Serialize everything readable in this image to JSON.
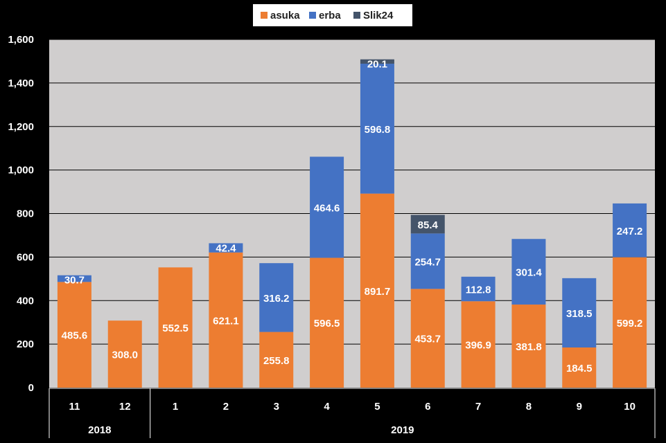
{
  "chart_data": {
    "type": "bar",
    "stacked": true,
    "categories": [
      "11",
      "12",
      "1",
      "2",
      "3",
      "4",
      "5",
      "6",
      "7",
      "8",
      "9",
      "10"
    ],
    "category_groups": [
      {
        "label": "2018",
        "span": 2
      },
      {
        "label": "2019",
        "span": 10
      }
    ],
    "series": [
      {
        "name": "asuka",
        "color": "#ed7d31",
        "values": [
          485.6,
          308.0,
          552.5,
          621.1,
          255.8,
          596.5,
          891.7,
          453.7,
          396.9,
          381.8,
          184.5,
          599.2
        ]
      },
      {
        "name": "erba",
        "color": "#4472c4",
        "values": [
          30.7,
          null,
          null,
          42.4,
          316.2,
          464.6,
          596.8,
          254.7,
          112.8,
          301.4,
          318.5,
          247.2
        ]
      },
      {
        "name": "Slik24",
        "color": "#44546a",
        "values": [
          null,
          null,
          null,
          null,
          null,
          null,
          20.1,
          85.4,
          null,
          null,
          null,
          null
        ]
      }
    ],
    "ylim": [
      0,
      1600
    ],
    "yticks": [
      "0",
      "200",
      "400",
      "600",
      "800",
      "1,000",
      "1,200",
      "1,400",
      "1,600"
    ],
    "grid": true,
    "legend_position": "top",
    "plot_background": "#d0cece",
    "title": "",
    "xlabel": "",
    "ylabel": ""
  }
}
